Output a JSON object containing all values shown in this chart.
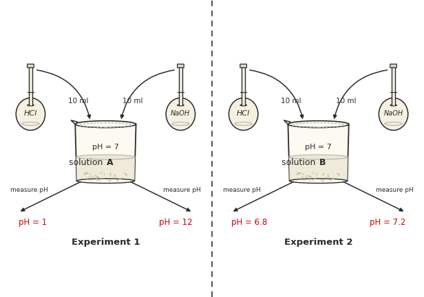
{
  "bg_color": "#ffffff",
  "flask_fill": "#f5f0e0",
  "beaker_fill": "#fdfaf2",
  "liquid_fill": "#ede8d5",
  "outline_color": "#2a2a2a",
  "text_color_dark": "#2a2a2a",
  "text_color_red": "#cc0000",
  "divider_color": "#555555",
  "exp1": {
    "title": "Experiment 1",
    "solution_label_normal": "solution ",
    "solution_label_bold": "A",
    "pH_beaker": "pH = 7",
    "pH_left": "pH = 1",
    "pH_right": "pH = 12",
    "label_left": "HCl",
    "label_right": "NaOH",
    "ml_left": "10 ml",
    "ml_right": "10 ml"
  },
  "exp2": {
    "title": "Experiment 2",
    "solution_label_normal": "solution ",
    "solution_label_bold": "B",
    "pH_beaker": "pH = 7",
    "pH_left": "pH = 6.8",
    "pH_right": "pH = 7.2",
    "label_left": "HCl",
    "label_right": "NaOH",
    "ml_left": "10 ml",
    "ml_right": "10 ml"
  }
}
